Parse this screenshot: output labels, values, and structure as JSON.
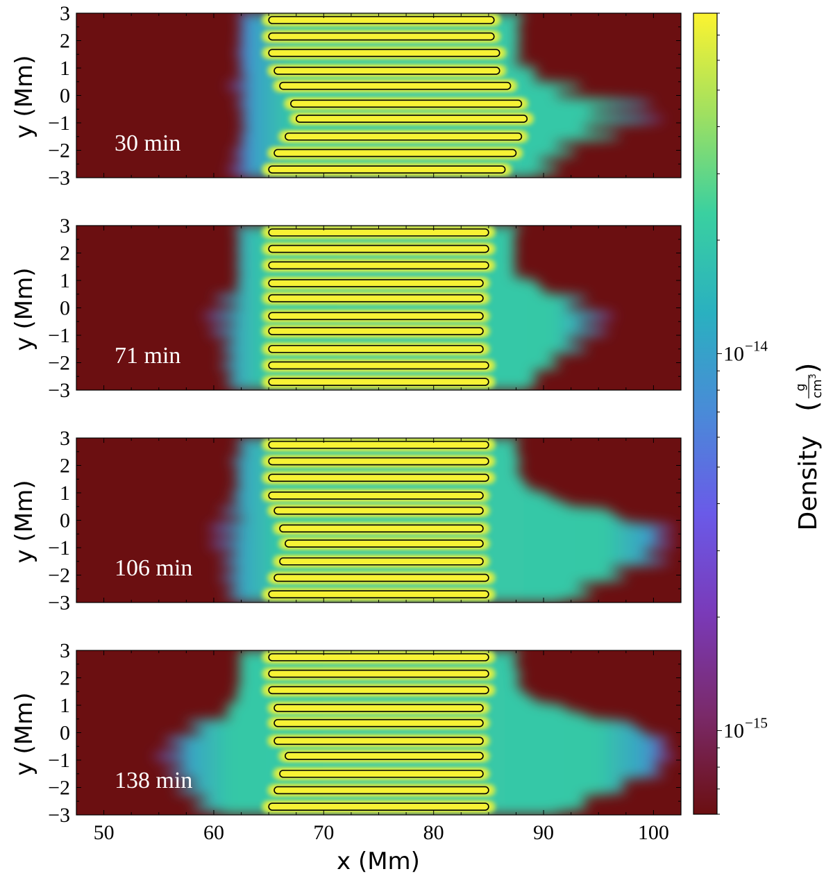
{
  "chart_data": {
    "type": "heatmap",
    "description_free": true,
    "xlabel": "x  (Mm)",
    "ylabel": "y  (Mm)",
    "xlim": [
      47.5,
      102.5
    ],
    "ylim": [
      -3,
      3
    ],
    "xticks": [
      50,
      60,
      70,
      80,
      90,
      100
    ],
    "yticks": [
      3,
      2,
      1,
      0,
      -1,
      -2,
      -3
    ],
    "ytick_labels": [
      "3",
      "2",
      "1",
      "0",
      "−1",
      "−2",
      "−3"
    ],
    "colorbar": {
      "label": "Density",
      "unit_numerator": "g",
      "unit_denominator": "cm",
      "unit_power": "3",
      "scale": "log",
      "range": [
        6e-16,
        8e-14
      ],
      "ticks": [
        {
          "value": 1e-14,
          "base": "10",
          "exp": "−14"
        },
        {
          "value": 1e-15,
          "base": "10",
          "exp": "−15"
        }
      ],
      "colors": [
        "#6b0f11",
        "#7a2a6a",
        "#7a3ab8",
        "#6a5ae8",
        "#4a8ad8",
        "#2ab0c0",
        "#3ad0a0",
        "#a0e060",
        "#fcf330"
      ]
    },
    "panels": [
      {
        "time_label": "30 min",
        "strands": [
          {
            "y": 2.75,
            "x0": 65.0,
            "x1": 85.5
          },
          {
            "y": 2.15,
            "x0": 65.0,
            "x1": 85.5
          },
          {
            "y": 1.55,
            "x0": 65.0,
            "x1": 86.0
          },
          {
            "y": 0.9,
            "x0": 65.5,
            "x1": 86.0
          },
          {
            "y": 0.35,
            "x0": 66.0,
            "x1": 87.0
          },
          {
            "y": -0.3,
            "x0": 67.0,
            "x1": 88.0
          },
          {
            "y": -0.85,
            "x0": 67.5,
            "x1": 88.5
          },
          {
            "y": -1.5,
            "x0": 66.5,
            "x1": 88.0
          },
          {
            "y": -2.1,
            "x0": 65.5,
            "x1": 87.5
          },
          {
            "y": -2.7,
            "x0": 65.0,
            "x1": 86.5
          }
        ],
        "left_edge": [
          {
            "y": 3.0,
            "x": 62.2
          },
          {
            "y": 2.75,
            "x": 62.3
          },
          {
            "y": 2.45,
            "x": 62.6
          },
          {
            "y": 2.15,
            "x": 62.2
          },
          {
            "y": 1.85,
            "x": 62.6
          },
          {
            "y": 1.55,
            "x": 62.0
          },
          {
            "y": 1.25,
            "x": 62.6
          },
          {
            "y": 0.9,
            "x": 62.2
          },
          {
            "y": 0.6,
            "x": 63.0
          },
          {
            "y": 0.35,
            "x": 61.2
          },
          {
            "y": 0.05,
            "x": 63.0
          },
          {
            "y": -0.3,
            "x": 62.0
          },
          {
            "y": -0.6,
            "x": 63.0
          },
          {
            "y": -0.85,
            "x": 62.3
          },
          {
            "y": -1.2,
            "x": 63.0
          },
          {
            "y": -1.5,
            "x": 62.2
          },
          {
            "y": -1.8,
            "x": 62.8
          },
          {
            "y": -2.1,
            "x": 61.6
          },
          {
            "y": -2.4,
            "x": 62.8
          },
          {
            "y": -2.7,
            "x": 61.2
          },
          {
            "y": -3.0,
            "x": 62.8
          }
        ],
        "right_edge": [
          {
            "y": 3.0,
            "x": 88.2
          },
          {
            "y": 2.75,
            "x": 88.0
          },
          {
            "y": 2.45,
            "x": 87.5
          },
          {
            "y": 2.15,
            "x": 88.0
          },
          {
            "y": 1.85,
            "x": 87.5
          },
          {
            "y": 1.55,
            "x": 88.0
          },
          {
            "y": 1.25,
            "x": 87.3
          },
          {
            "y": 0.9,
            "x": 89.5
          },
          {
            "y": 0.6,
            "x": 89.0
          },
          {
            "y": 0.35,
            "x": 93.5
          },
          {
            "y": 0.05,
            "x": 91.0
          },
          {
            "y": -0.3,
            "x": 100.0
          },
          {
            "y": -0.6,
            "x": 94.0
          },
          {
            "y": -0.85,
            "x": 101.0
          },
          {
            "y": -1.2,
            "x": 93.5
          },
          {
            "y": -1.5,
            "x": 97.0
          },
          {
            "y": -1.8,
            "x": 91.0
          },
          {
            "y": -2.1,
            "x": 93.0
          },
          {
            "y": -2.4,
            "x": 89.5
          },
          {
            "y": -2.7,
            "x": 91.5
          },
          {
            "y": -3.0,
            "x": 89.0
          }
        ]
      },
      {
        "time_label": "71 min",
        "strands": [
          {
            "y": 2.75,
            "x0": 65.0,
            "x1": 85.0
          },
          {
            "y": 2.15,
            "x0": 65.0,
            "x1": 85.0
          },
          {
            "y": 1.55,
            "x0": 65.0,
            "x1": 85.0
          },
          {
            "y": 0.9,
            "x0": 65.0,
            "x1": 84.5
          },
          {
            "y": 0.35,
            "x0": 65.0,
            "x1": 84.5
          },
          {
            "y": -0.3,
            "x0": 65.0,
            "x1": 84.5
          },
          {
            "y": -0.85,
            "x0": 65.0,
            "x1": 84.5
          },
          {
            "y": -1.5,
            "x0": 65.0,
            "x1": 84.5
          },
          {
            "y": -2.1,
            "x0": 65.0,
            "x1": 85.0
          },
          {
            "y": -2.7,
            "x0": 65.0,
            "x1": 85.0
          }
        ],
        "left_edge": [
          {
            "y": 3.0,
            "x": 62.0
          },
          {
            "y": 2.75,
            "x": 62.0
          },
          {
            "y": 2.45,
            "x": 62.4
          },
          {
            "y": 2.15,
            "x": 62.0
          },
          {
            "y": 1.85,
            "x": 62.4
          },
          {
            "y": 1.55,
            "x": 62.0
          },
          {
            "y": 1.25,
            "x": 62.4
          },
          {
            "y": 0.9,
            "x": 62.0
          },
          {
            "y": 0.6,
            "x": 62.4
          },
          {
            "y": 0.35,
            "x": 60.0
          },
          {
            "y": 0.05,
            "x": 62.4
          },
          {
            "y": -0.3,
            "x": 59.0
          },
          {
            "y": -0.6,
            "x": 62.2
          },
          {
            "y": -0.85,
            "x": 59.5
          },
          {
            "y": -1.2,
            "x": 62.0
          },
          {
            "y": -1.5,
            "x": 60.5
          },
          {
            "y": -1.8,
            "x": 62.0
          },
          {
            "y": -2.1,
            "x": 60.5
          },
          {
            "y": -2.4,
            "x": 62.0
          },
          {
            "y": -2.7,
            "x": 61.0
          },
          {
            "y": -3.0,
            "x": 62.0
          }
        ],
        "right_edge": [
          {
            "y": 3.0,
            "x": 88.0
          },
          {
            "y": 2.75,
            "x": 87.5
          },
          {
            "y": 2.45,
            "x": 87.2
          },
          {
            "y": 2.15,
            "x": 87.5
          },
          {
            "y": 1.85,
            "x": 87.2
          },
          {
            "y": 1.55,
            "x": 87.5
          },
          {
            "y": 1.25,
            "x": 87.2
          },
          {
            "y": 0.9,
            "x": 89.5
          },
          {
            "y": 0.6,
            "x": 90.0
          },
          {
            "y": 0.35,
            "x": 94.0
          },
          {
            "y": 0.05,
            "x": 92.0
          },
          {
            "y": -0.3,
            "x": 96.5
          },
          {
            "y": -0.6,
            "x": 93.0
          },
          {
            "y": -0.85,
            "x": 96.0
          },
          {
            "y": -1.2,
            "x": 92.0
          },
          {
            "y": -1.5,
            "x": 94.0
          },
          {
            "y": -1.8,
            "x": 90.5
          },
          {
            "y": -2.1,
            "x": 91.5
          },
          {
            "y": -2.4,
            "x": 89.0
          },
          {
            "y": -2.7,
            "x": 89.5
          },
          {
            "y": -3.0,
            "x": 88.5
          }
        ]
      },
      {
        "time_label": "106 min",
        "strands": [
          {
            "y": 2.75,
            "x0": 65.0,
            "x1": 85.0
          },
          {
            "y": 2.15,
            "x0": 65.0,
            "x1": 85.0
          },
          {
            "y": 1.55,
            "x0": 65.0,
            "x1": 85.0
          },
          {
            "y": 0.9,
            "x0": 65.0,
            "x1": 84.5
          },
          {
            "y": 0.35,
            "x0": 65.5,
            "x1": 84.5
          },
          {
            "y": -0.3,
            "x0": 66.0,
            "x1": 84.5
          },
          {
            "y": -0.85,
            "x0": 66.5,
            "x1": 84.5
          },
          {
            "y": -1.5,
            "x0": 66.0,
            "x1": 84.5
          },
          {
            "y": -2.1,
            "x0": 65.5,
            "x1": 85.0
          },
          {
            "y": -2.7,
            "x0": 65.0,
            "x1": 85.0
          }
        ],
        "left_edge": [
          {
            "y": 3.0,
            "x": 62.5
          },
          {
            "y": 2.75,
            "x": 62.0
          },
          {
            "y": 2.45,
            "x": 62.8
          },
          {
            "y": 2.15,
            "x": 61.5
          },
          {
            "y": 1.85,
            "x": 62.5
          },
          {
            "y": 1.55,
            "x": 61.8
          },
          {
            "y": 1.25,
            "x": 62.5
          },
          {
            "y": 0.9,
            "x": 61.5
          },
          {
            "y": 0.6,
            "x": 62.5
          },
          {
            "y": 0.35,
            "x": 60.5
          },
          {
            "y": 0.05,
            "x": 62.8
          },
          {
            "y": -0.3,
            "x": 59.5
          },
          {
            "y": -0.6,
            "x": 62.5
          },
          {
            "y": -0.85,
            "x": 59.5
          },
          {
            "y": -1.2,
            "x": 62.3
          },
          {
            "y": -1.5,
            "x": 60.5
          },
          {
            "y": -1.8,
            "x": 62.3
          },
          {
            "y": -2.1,
            "x": 60.5
          },
          {
            "y": -2.4,
            "x": 62.3
          },
          {
            "y": -2.7,
            "x": 61.0
          },
          {
            "y": -3.0,
            "x": 62.5
          }
        ],
        "right_edge": [
          {
            "y": 3.0,
            "x": 88.0
          },
          {
            "y": 2.75,
            "x": 87.5
          },
          {
            "y": 2.45,
            "x": 87.5
          },
          {
            "y": 2.15,
            "x": 88.0
          },
          {
            "y": 1.85,
            "x": 87.5
          },
          {
            "y": 1.55,
            "x": 88.0
          },
          {
            "y": 1.25,
            "x": 88.5
          },
          {
            "y": 0.9,
            "x": 90.5
          },
          {
            "y": 0.6,
            "x": 92.0
          },
          {
            "y": 0.35,
            "x": 96.0
          },
          {
            "y": 0.05,
            "x": 97.0
          },
          {
            "y": -0.3,
            "x": 102.0
          },
          {
            "y": -0.6,
            "x": 100.0
          },
          {
            "y": -0.85,
            "x": 102.0
          },
          {
            "y": -1.2,
            "x": 99.0
          },
          {
            "y": -1.5,
            "x": 101.5
          },
          {
            "y": -1.8,
            "x": 96.0
          },
          {
            "y": -2.1,
            "x": 97.5
          },
          {
            "y": -2.4,
            "x": 93.0
          },
          {
            "y": -2.7,
            "x": 94.5
          },
          {
            "y": -3.0,
            "x": 91.5
          }
        ]
      },
      {
        "time_label": "138 min",
        "strands": [
          {
            "y": 2.75,
            "x0": 65.0,
            "x1": 85.0
          },
          {
            "y": 2.15,
            "x0": 65.0,
            "x1": 85.0
          },
          {
            "y": 1.55,
            "x0": 65.0,
            "x1": 85.0
          },
          {
            "y": 0.9,
            "x0": 65.5,
            "x1": 84.5
          },
          {
            "y": 0.35,
            "x0": 65.5,
            "x1": 84.5
          },
          {
            "y": -0.3,
            "x0": 65.5,
            "x1": 84.5
          },
          {
            "y": -0.85,
            "x0": 66.5,
            "x1": 84.5
          },
          {
            "y": -1.5,
            "x0": 66.0,
            "x1": 84.5
          },
          {
            "y": -2.1,
            "x0": 65.5,
            "x1": 85.0
          },
          {
            "y": -2.7,
            "x0": 65.0,
            "x1": 85.0
          }
        ],
        "left_edge": [
          {
            "y": 3.0,
            "x": 62.5
          },
          {
            "y": 2.75,
            "x": 62.2
          },
          {
            "y": 2.45,
            "x": 62.5
          },
          {
            "y": 2.15,
            "x": 62.2
          },
          {
            "y": 1.85,
            "x": 62.5
          },
          {
            "y": 1.55,
            "x": 62.0
          },
          {
            "y": 1.25,
            "x": 62.2
          },
          {
            "y": 0.9,
            "x": 61.0
          },
          {
            "y": 0.6,
            "x": 61.5
          },
          {
            "y": 0.35,
            "x": 57.5
          },
          {
            "y": 0.05,
            "x": 59.0
          },
          {
            "y": -0.3,
            "x": 55.5
          },
          {
            "y": -0.6,
            "x": 57.5
          },
          {
            "y": -0.85,
            "x": 54.5
          },
          {
            "y": -1.2,
            "x": 57.5
          },
          {
            "y": -1.5,
            "x": 55.5
          },
          {
            "y": -1.8,
            "x": 58.5
          },
          {
            "y": -2.1,
            "x": 56.5
          },
          {
            "y": -2.4,
            "x": 59.5
          },
          {
            "y": -2.7,
            "x": 58.0
          },
          {
            "y": -3.0,
            "x": 61.0
          }
        ],
        "right_edge": [
          {
            "y": 3.0,
            "x": 88.0
          },
          {
            "y": 2.75,
            "x": 87.5
          },
          {
            "y": 2.45,
            "x": 87.3
          },
          {
            "y": 2.15,
            "x": 88.0
          },
          {
            "y": 1.85,
            "x": 87.5
          },
          {
            "y": 1.55,
            "x": 88.0
          },
          {
            "y": 1.25,
            "x": 89.0
          },
          {
            "y": 0.9,
            "x": 92.0
          },
          {
            "y": 0.6,
            "x": 94.0
          },
          {
            "y": 0.35,
            "x": 98.0
          },
          {
            "y": 0.05,
            "x": 99.0
          },
          {
            "y": -0.3,
            "x": 101.5
          },
          {
            "y": -0.6,
            "x": 100.5
          },
          {
            "y": -0.85,
            "x": 102.0
          },
          {
            "y": -1.2,
            "x": 100.0
          },
          {
            "y": -1.5,
            "x": 101.0
          },
          {
            "y": -1.8,
            "x": 97.0
          },
          {
            "y": -2.1,
            "x": 97.5
          },
          {
            "y": -2.4,
            "x": 93.5
          },
          {
            "y": -2.7,
            "x": 94.0
          },
          {
            "y": -3.0,
            "x": 91.0
          }
        ]
      }
    ]
  }
}
